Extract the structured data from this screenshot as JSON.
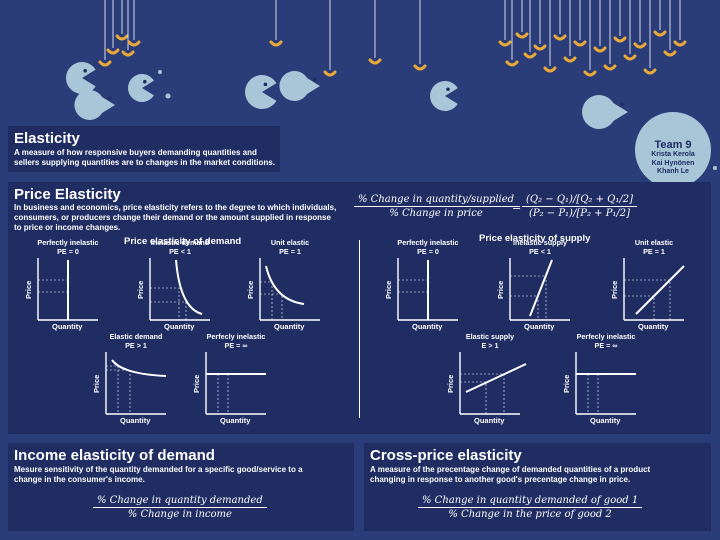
{
  "colors": {
    "background": "#2b3d78",
    "panel": "#1f2d63",
    "fish": "#a9c5d8",
    "bait": "#e9a93a",
    "line": "#ffffff"
  },
  "elasticity": {
    "title": "Elasticity",
    "description": "A measure of how responsive buyers demanding quantities and sellers supplying quantities are to changes in the market conditions."
  },
  "team": {
    "name": "Team 9",
    "members": [
      "Krista Kerola",
      "Kai Hynönen",
      "Khanh Le"
    ]
  },
  "price_elasticity": {
    "title": "Price Elasticity",
    "description": "In business and economics, price elasticity refers to the degree to which individuals, consumers, or producers change their demand or the amount supplied in response to price or income changes.",
    "formula": {
      "lhs_num": "% Change in quantity/supplied",
      "lhs_den": "% Change in price",
      "rhs_num": "(Q₂ − Q₁)/[Q₂ + Q₁/2]",
      "rhs_den": "(P₂ − P₁)/[P₂ + P₁/2]"
    },
    "demand": {
      "title": "Price elasticity of demand",
      "axis_x": "Quantity",
      "axis_y": "Price",
      "graphs": [
        {
          "title": "Perfectly inelastic\nPE = 0",
          "shape": "vertical"
        },
        {
          "title": "Inelastic demand\nPE < 1",
          "shape": "steep-curve"
        },
        {
          "title": "Unit elastic\nPE = 1",
          "shape": "hyperbola"
        },
        {
          "title": "Elastic demand\nPE > 1",
          "shape": "flat-curve"
        },
        {
          "title": "Perfecly inelastic\nPE = ∞",
          "shape": "horizontal"
        }
      ]
    },
    "supply": {
      "title": "Price elasticity of supply",
      "axis_x": "Quantity",
      "axis_y": "Price",
      "graphs": [
        {
          "title": "Perfectly inelastic\nPE = 0",
          "shape": "vertical"
        },
        {
          "title": "Inelastic supply\nPE < 1",
          "shape": "steep-line"
        },
        {
          "title": "Unit elastic\nPE = 1",
          "shape": "diagonal"
        },
        {
          "title": "Elastic supply\nE > 1",
          "shape": "flat-line"
        },
        {
          "title": "Perfecly inelastic\nPE = ∞",
          "shape": "horizontal"
        }
      ]
    }
  },
  "income": {
    "title": "Income elasticity of demand",
    "description": "Mesure sensitivity of the quantity demanded for a specific good/service to a change in the consumer's income.",
    "formula_num": "% Change in quantity demanded",
    "formula_den": "% Change in income"
  },
  "cross": {
    "title": "Cross-price elasticity",
    "description": "A measure of the precentage change of demanded quantities of a product changing in response to another good's precentage change in price.",
    "formula_num": "% Change in quantity demanded of good 1",
    "formula_den": "% Change in the price of good 2"
  }
}
